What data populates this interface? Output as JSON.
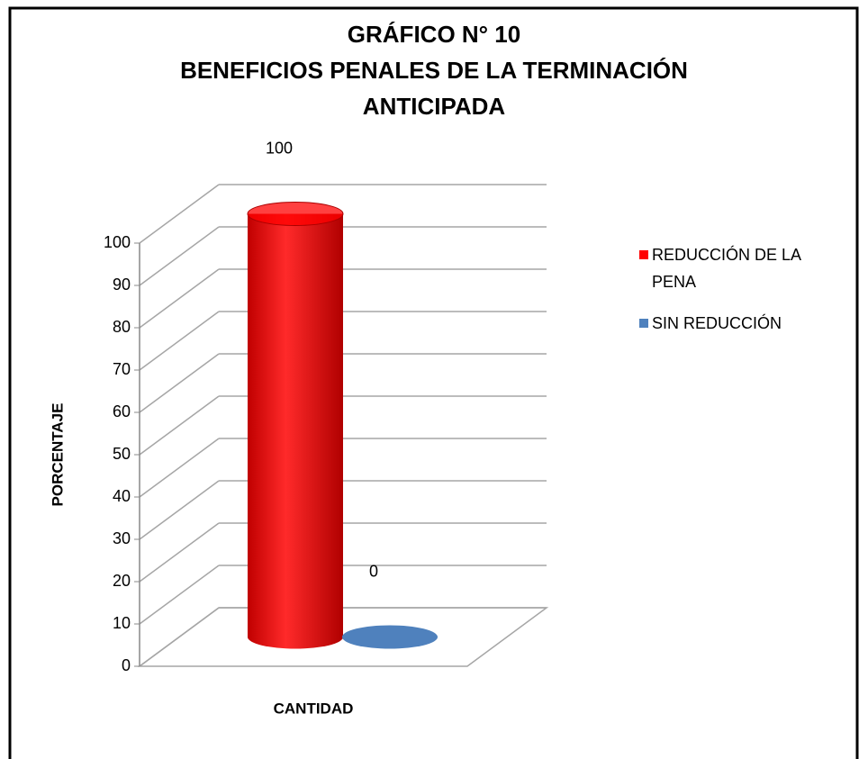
{
  "chart_data": {
    "type": "bar3d",
    "title": [
      "GRÁFICO N° 10",
      "BENEFICIOS PENALES DE LA TERMINACIÓN",
      "ANTICIPADA"
    ],
    "categories": [
      null
    ],
    "x_label": "CANTIDAD",
    "y_label": "PORCENTAJE",
    "series": [
      {
        "name": "REDUCCIÓN DE LA PENA",
        "color": "#ff0000",
        "values": [
          100
        ]
      },
      {
        "name": "SIN REDUCCIÓN",
        "color": "#4f81bd",
        "values": [
          0
        ]
      }
    ],
    "ylim": [
      0,
      100
    ],
    "yticks": [
      0,
      10,
      20,
      30,
      40,
      50,
      60,
      70,
      80,
      90,
      100
    ],
    "grid": true,
    "legend": "right"
  }
}
